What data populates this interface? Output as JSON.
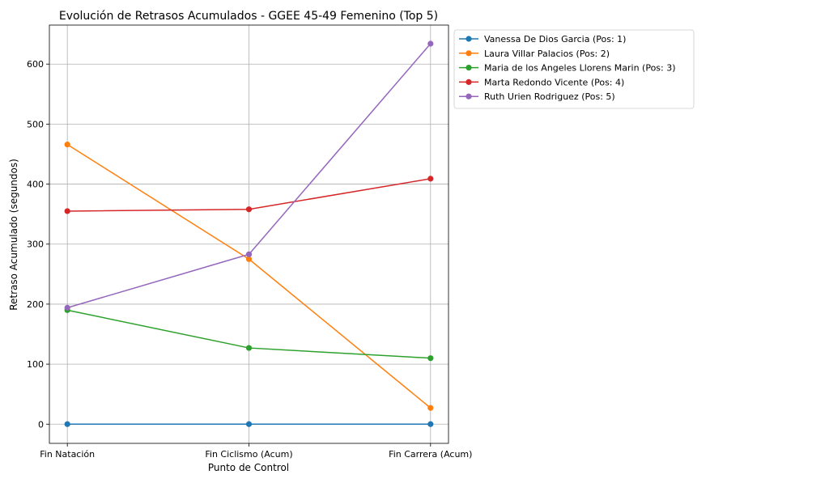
{
  "chart_data": {
    "type": "line",
    "title": "Evolución de Retrasos Acumulados - GGEE 45-49 Femenino (Top 5)",
    "xlabel": "Punto de Control",
    "ylabel": "Retraso Acumulado (segundos)",
    "categories": [
      "Fin Natación",
      "Fin Ciclismo (Acum)",
      "Fin Carrera (Acum)"
    ],
    "ylim": [
      -32,
      665
    ],
    "yticks": [
      0,
      100,
      200,
      300,
      400,
      500,
      600
    ],
    "grid": true,
    "legend_position": "outside-top-right",
    "series": [
      {
        "name": "Vanessa De Dios Garcia (Pos: 1)",
        "color": "#1f77b4",
        "values": [
          0,
          0,
          0
        ]
      },
      {
        "name": "Laura Villar Palacios (Pos: 2)",
        "color": "#ff7f0e",
        "values": [
          466,
          275,
          27
        ]
      },
      {
        "name": "Maria de los Angeles Llorens Marin (Pos: 3)",
        "color": "#2ca02c",
        "values": [
          190,
          127,
          110
        ]
      },
      {
        "name": "Marta Redondo Vicente (Pos: 4)",
        "color": "#d62728",
        "values": [
          355,
          358,
          409
        ]
      },
      {
        "name": "Ruth Urien Rodriguez (Pos: 5)",
        "color": "#9467bd",
        "values": [
          194,
          283,
          634
        ]
      }
    ]
  }
}
